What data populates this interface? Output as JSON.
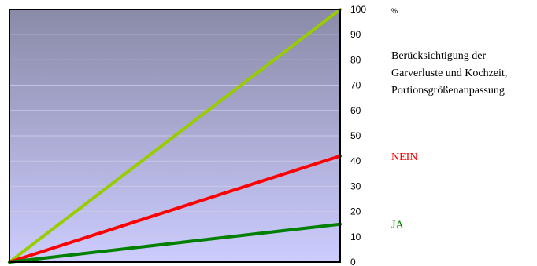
{
  "chart_data": {
    "type": "line",
    "x": [
      0,
      1
    ],
    "ylim": [
      0,
      100
    ],
    "yticks": [
      0,
      10,
      20,
      30,
      40,
      50,
      60,
      70,
      80,
      90,
      100
    ],
    "yunit": "%",
    "ylabel": "",
    "xlabel": "",
    "title": "",
    "grid": true,
    "yaxis_side": "right",
    "legend_placement": "right",
    "annotation": [
      "Berücksichtigung der",
      "Garverluste und Kochzeit,",
      "Portionsgrößenanpassung"
    ],
    "series": [
      {
        "name": "",
        "values": [
          0,
          100
        ],
        "color": "#99cc00"
      },
      {
        "name": "NEIN",
        "values": [
          0,
          42
        ],
        "color": "#ff0000"
      },
      {
        "name": "JA",
        "values": [
          0,
          15
        ],
        "color": "#008000"
      }
    ],
    "background_gradient": [
      "#8a8aa8",
      "#ccccff"
    ]
  }
}
